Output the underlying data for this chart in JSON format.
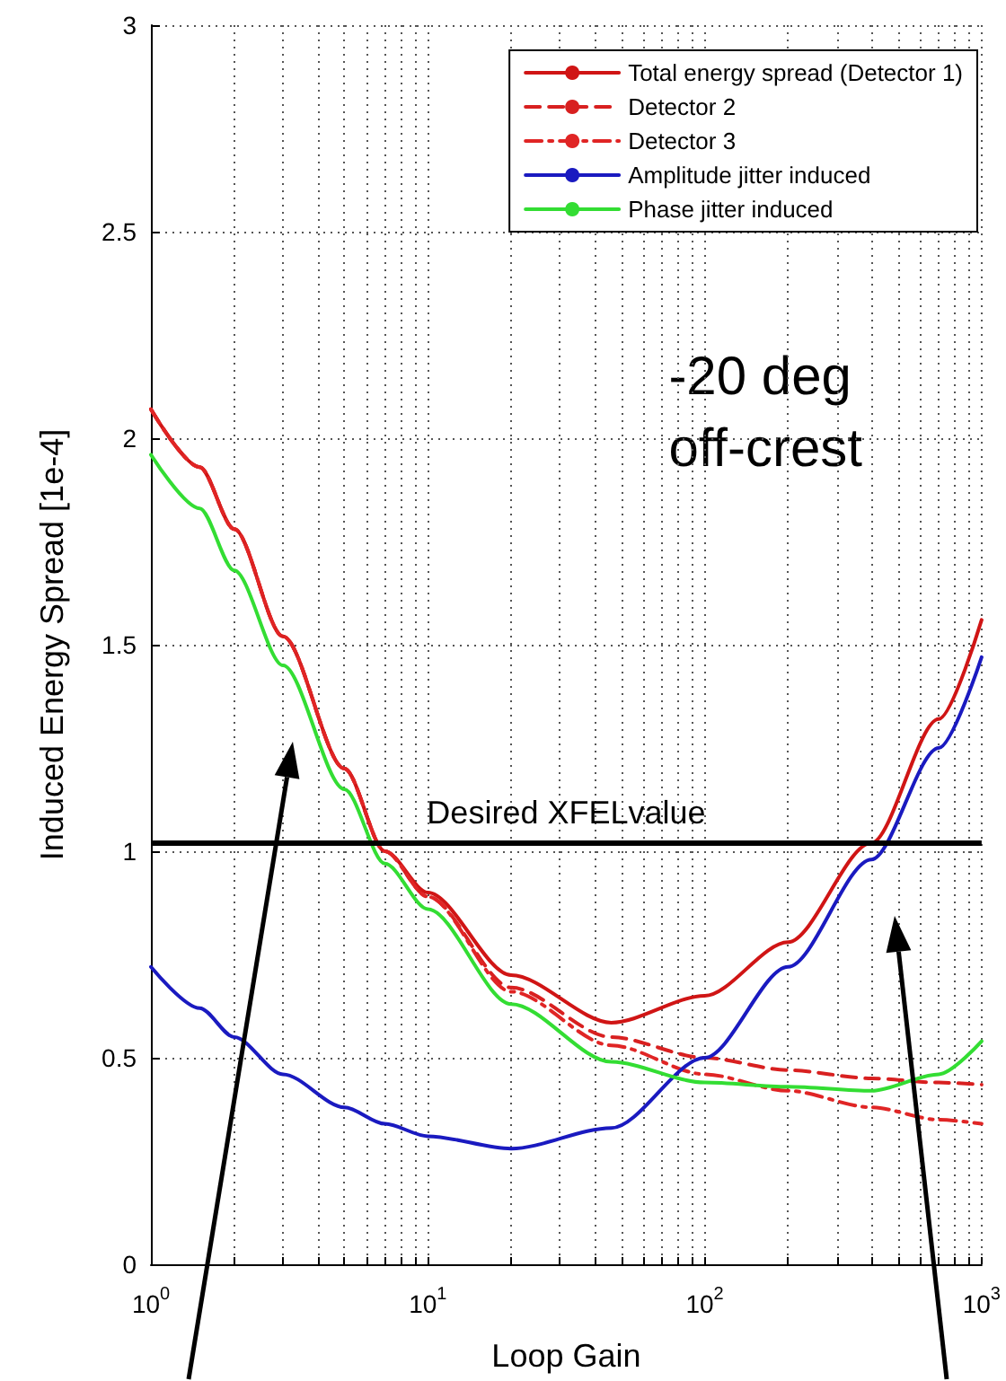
{
  "chart_data": {
    "type": "line",
    "xlabel": "Loop Gain",
    "ylabel": "Induced Energy Spread [1e-4]",
    "log": "x",
    "grid": true,
    "legend": "top right",
    "marker": "none",
    "xlim": [
      1,
      1000
    ],
    "ylim": [
      0,
      3
    ],
    "xticks": [
      {
        "value": 1,
        "label": "10$^{0}$"
      },
      {
        "value": 2,
        "label": null
      },
      {
        "value": 3,
        "label": null
      },
      {
        "value": 4,
        "label": null
      },
      {
        "value": 5,
        "label": null
      },
      {
        "value": 6,
        "label": null
      },
      {
        "value": 7,
        "label": null
      },
      {
        "value": 8,
        "label": null
      },
      {
        "value": 9,
        "label": null
      },
      {
        "value": 10,
        "label": "10$^{1}$"
      },
      {
        "value": 20,
        "label": null
      },
      {
        "value": 30,
        "label": null
      },
      {
        "value": 40,
        "label": null
      },
      {
        "value": 50,
        "label": null
      },
      {
        "value": 60,
        "label": null
      },
      {
        "value": 70,
        "label": null
      },
      {
        "value": 80,
        "label": null
      },
      {
        "value": 90,
        "label": null
      },
      {
        "value": 100,
        "label": "10$^{2}$"
      },
      {
        "value": 200,
        "label": null
      },
      {
        "value": 300,
        "label": null
      },
      {
        "value": 400,
        "label": null
      },
      {
        "value": 500,
        "label": null
      },
      {
        "value": 600,
        "label": null
      },
      {
        "value": 700,
        "label": null
      },
      {
        "value": 800,
        "label": null
      },
      {
        "value": 900,
        "label": null
      },
      {
        "value": 1000,
        "label": "10$^{3}$"
      }
    ],
    "yticks": [
      0,
      0.5,
      1,
      1.5,
      2,
      2.5,
      3
    ],
    "x": [
      1,
      1.5,
      2,
      3,
      5,
      7,
      10,
      20,
      46,
      100,
      200,
      400,
      700,
      1000
    ],
    "series": [
      {
        "name": "Total energy spread (Detector 1)",
        "color": "#d01515",
        "line_style": "solid",
        "values": [
          2.07,
          1.93,
          1.78,
          1.52,
          1.2,
          1.0,
          0.9,
          0.7,
          0.585,
          0.65,
          0.78,
          1.02,
          1.32,
          1.56
        ]
      },
      {
        "name": "Detector 2",
        "color": "#d82020",
        "line_style": "dashed",
        "values": [
          2.07,
          1.93,
          1.78,
          1.52,
          1.2,
          1.0,
          0.89,
          0.67,
          0.55,
          0.5,
          0.47,
          0.45,
          0.44,
          0.435
        ]
      },
      {
        "name": "Detector 3",
        "color": "#e02525",
        "line_style": "dashdot",
        "values": [
          2.07,
          1.93,
          1.78,
          1.52,
          1.2,
          1.0,
          0.89,
          0.66,
          0.53,
          0.46,
          0.42,
          0.38,
          0.35,
          0.34
        ]
      },
      {
        "name": "Amplitude jitter induced",
        "color": "#1a1ac0",
        "line_style": "solid",
        "values": [
          0.72,
          0.62,
          0.55,
          0.46,
          0.38,
          0.34,
          0.31,
          0.28,
          0.33,
          0.5,
          0.72,
          0.98,
          1.25,
          1.47
        ]
      },
      {
        "name": "Phase jitter induced",
        "color": "#33dd33",
        "line_style": "solid",
        "values": [
          1.96,
          1.83,
          1.68,
          1.45,
          1.15,
          0.97,
          0.86,
          0.63,
          0.49,
          0.44,
          0.43,
          0.42,
          0.46,
          0.54
        ]
      }
    ],
    "ref_lines": [
      {
        "axis": "y",
        "value": 1.02,
        "label": "Desired XFELvalue",
        "color": "#000000",
        "line_style": "solid"
      }
    ],
    "annotations": [
      "-20 deg off-crest"
    ]
  }
}
